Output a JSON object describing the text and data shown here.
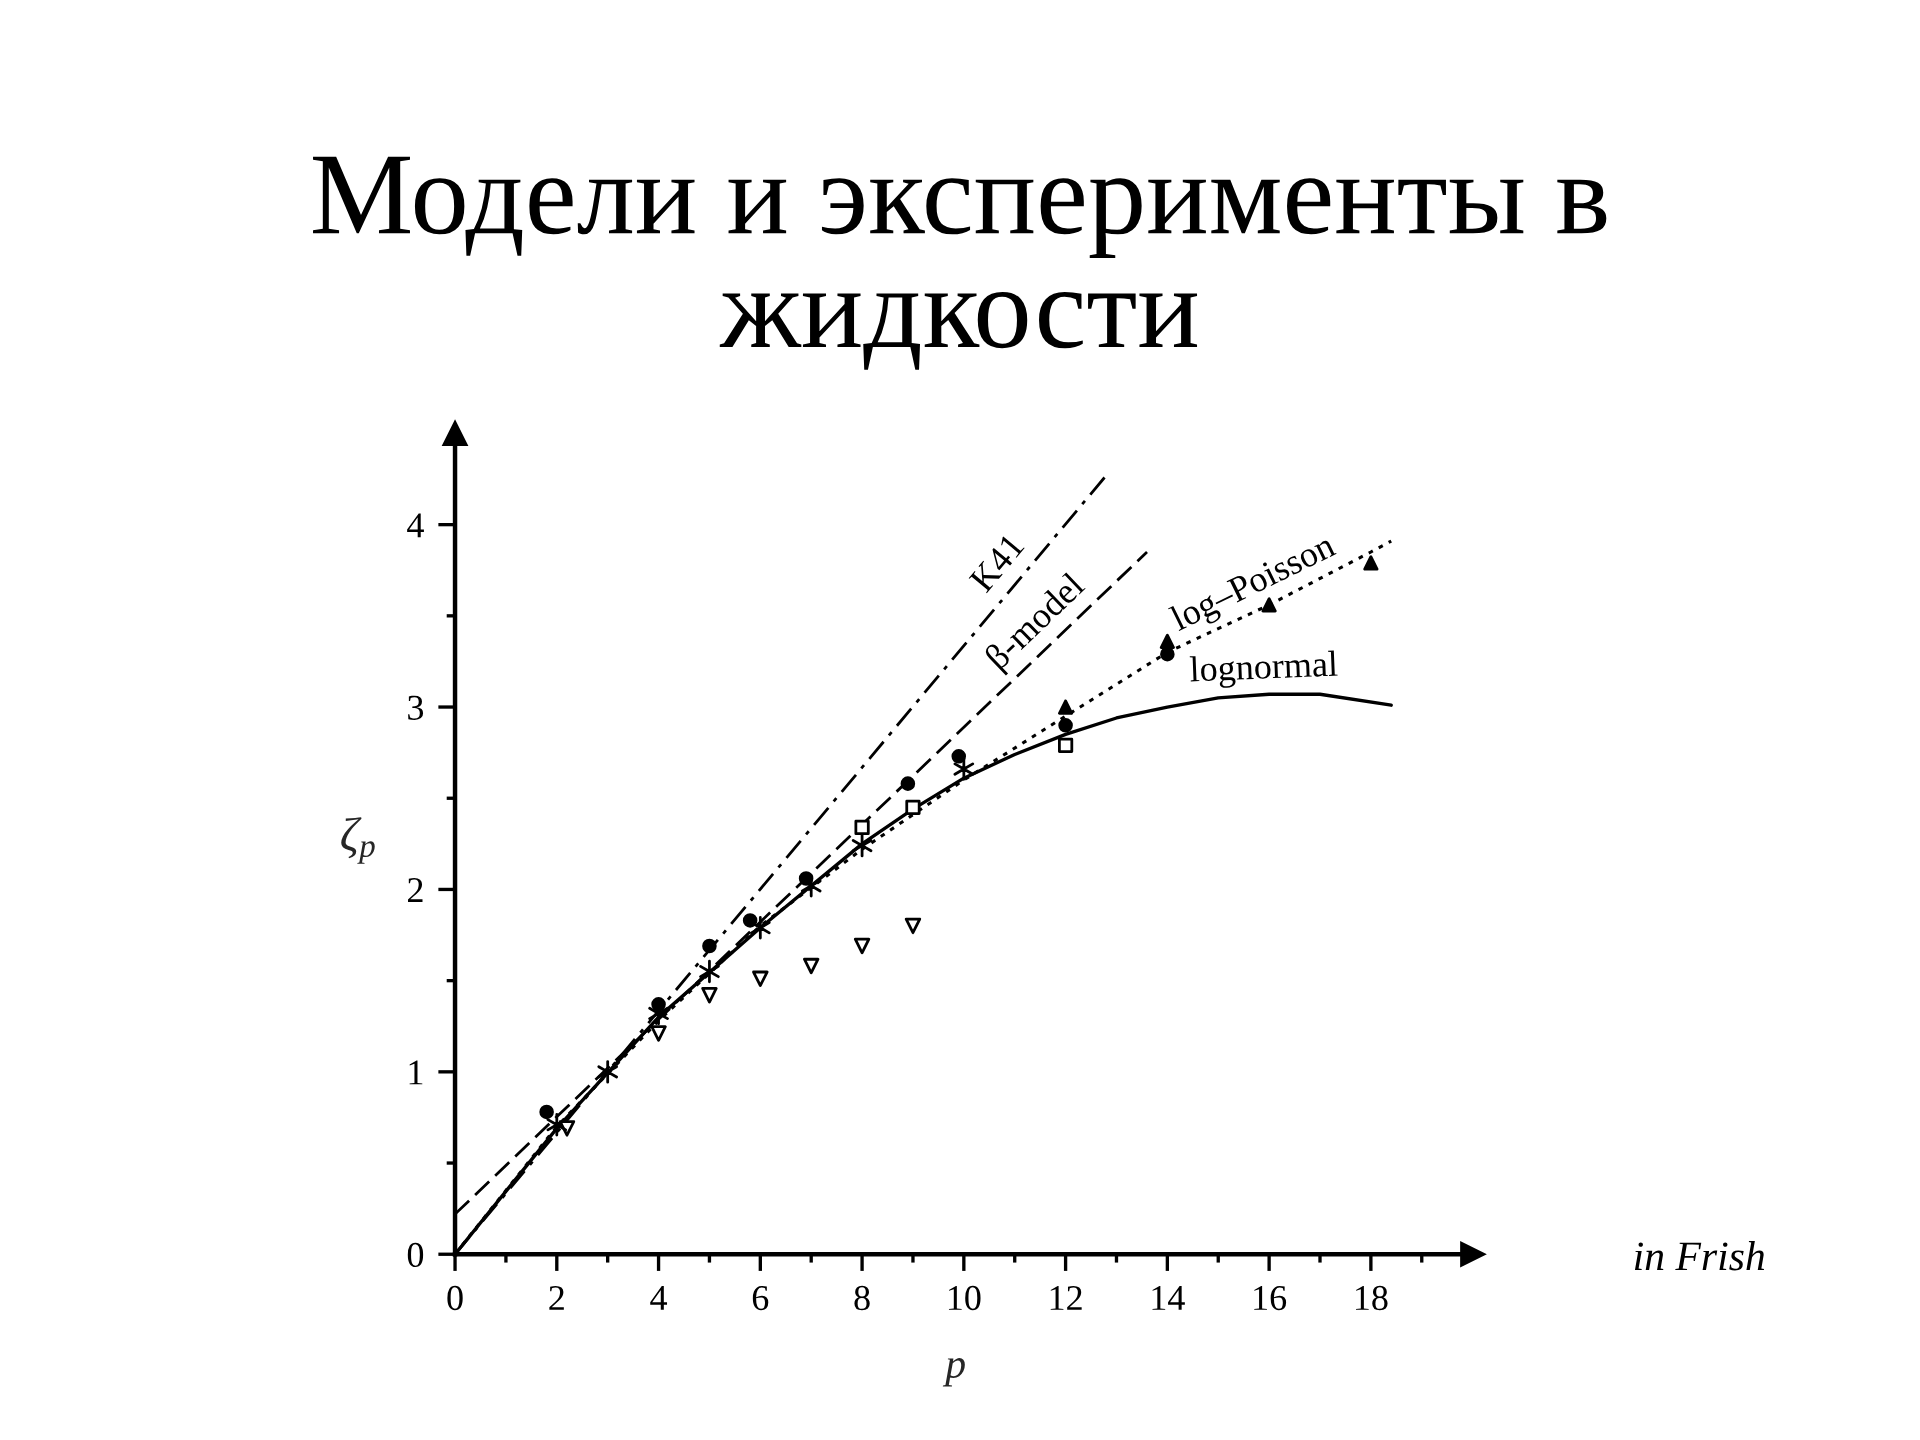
{
  "chart_data": {
    "type": "line",
    "title": "Модели и эксперименты в жидкости",
    "xlabel": "p",
    "ylabel": "ζ$_{p}$",
    "annotations": [
      "in Frish"
    ],
    "xlim": [
      0,
      20
    ],
    "ylim": [
      0,
      4.5
    ],
    "xticks": [
      0,
      {
        "value": 1,
        "label": null
      },
      2,
      {
        "value": 3,
        "label": null
      },
      4,
      {
        "value": 5,
        "label": null
      },
      6,
      {
        "value": 7,
        "label": null
      },
      8,
      {
        "value": 9,
        "label": null
      },
      10,
      {
        "value": 11,
        "label": null
      },
      12,
      {
        "value": 13,
        "label": null
      },
      14,
      {
        "value": 15,
        "label": null
      },
      16,
      {
        "value": 17,
        "label": null
      },
      18,
      {
        "value": 19,
        "label": null
      }
    ],
    "yticks": [
      0,
      {
        "value": 0.5,
        "label": null
      },
      1,
      {
        "value": 1.5,
        "label": null
      },
      2,
      {
        "value": 2.5,
        "label": null
      },
      3,
      {
        "value": 3.5,
        "label": null
      },
      4
    ],
    "series": [
      {
        "name": "K41",
        "line_style": "dashdot",
        "color": "#000000",
        "x": [
          0,
          12.8
        ],
        "values": [
          0,
          4.27
        ]
      },
      {
        "name": "β-model",
        "line_style": "dashed",
        "color": "#000000",
        "x": [
          0,
          13.6
        ],
        "values": [
          0.22,
          3.85
        ]
      },
      {
        "name": "log–Poisson",
        "line_style": "dotted",
        "color": "#000000",
        "x": [
          0,
          2,
          4,
          6,
          8,
          10,
          12,
          14,
          16,
          18,
          18.4
        ],
        "values": [
          0,
          0.7,
          1.28,
          1.8,
          2.22,
          2.6,
          2.95,
          3.3,
          3.56,
          3.85,
          3.91
        ]
      },
      {
        "name": "lognormal",
        "line_style": "solid",
        "color": "#000000",
        "x": [
          0,
          2,
          4,
          6,
          8,
          9,
          10,
          11,
          12,
          13,
          14,
          15,
          16,
          17,
          18.4
        ],
        "values": [
          0,
          0.69,
          1.3,
          1.79,
          2.25,
          2.44,
          2.61,
          2.74,
          2.85,
          2.94,
          3.0,
          3.05,
          3.07,
          3.07,
          3.01
        ]
      },
      {
        "type": "scatter",
        "marker": "circle",
        "color": "#000000",
        "x": [
          1.8,
          4,
          5,
          5.8,
          6.9,
          8.9,
          9.9,
          12,
          14
        ],
        "values": [
          0.78,
          1.37,
          1.69,
          1.83,
          2.06,
          2.58,
          2.73,
          2.9,
          3.29
        ]
      },
      {
        "type": "scatter",
        "marker": "triangle",
        "color": "#000000",
        "x": [
          12,
          14,
          16,
          18
        ],
        "values": [
          3.0,
          3.36,
          3.56,
          3.79
        ]
      },
      {
        "type": "scatter",
        "marker": "square",
        "color": "#000000",
        "x": [
          8,
          9,
          12
        ],
        "values": [
          2.34,
          2.45,
          2.79
        ]
      },
      {
        "type": "scatter",
        "marker": "triangle_down",
        "color": "#000000",
        "x": [
          2.2,
          4,
          5,
          6,
          7,
          8,
          9
        ],
        "values": [
          0.69,
          1.21,
          1.42,
          1.51,
          1.58,
          1.69,
          1.8
        ]
      },
      {
        "type": "scatter",
        "marker": "cross",
        "color": "#000000",
        "x": [
          2,
          3,
          4,
          5,
          6,
          7,
          8,
          10
        ],
        "values": [
          0.71,
          1.0,
          1.32,
          1.55,
          1.79,
          2.02,
          2.24,
          2.66
        ]
      }
    ]
  }
}
